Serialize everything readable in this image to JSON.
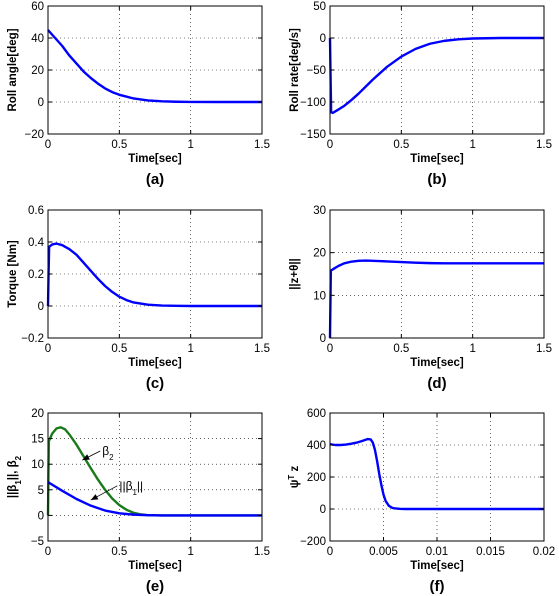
{
  "chart_data": [
    {
      "id": "a",
      "type": "line",
      "caption": "(a)",
      "xlabel": "Time[sec]",
      "ylabel": "Roll angle[deg]",
      "xlim": [
        0,
        1.5
      ],
      "ylim": [
        -20,
        60
      ],
      "xticks": [
        0,
        0.5,
        1,
        1.5
      ],
      "xtick_labels": [
        "0",
        "0.5",
        "1",
        "1.5"
      ],
      "yticks": [
        -20,
        0,
        20,
        40,
        60
      ],
      "ytick_labels": [
        "−20",
        "0",
        "20",
        "40",
        "60"
      ],
      "grid": true,
      "series": [
        {
          "color": "#0000ff",
          "x": [
            0,
            0.05,
            0.1,
            0.15,
            0.2,
            0.25,
            0.3,
            0.35,
            0.4,
            0.45,
            0.5,
            0.6,
            0.7,
            0.8,
            0.9,
            1.0,
            1.2,
            1.5
          ],
          "y": [
            45,
            40,
            35,
            29,
            24,
            19,
            15,
            11.5,
            8.5,
            6.2,
            4.5,
            2.2,
            1,
            0.4,
            0.15,
            0.05,
            0,
            0
          ]
        }
      ]
    },
    {
      "id": "b",
      "type": "line",
      "caption": "(b)",
      "xlabel": "Time[sec]",
      "ylabel": "Roll rate[deg/s]",
      "xlim": [
        0,
        1.5
      ],
      "ylim": [
        -150,
        50
      ],
      "xticks": [
        0,
        0.5,
        1,
        1.5
      ],
      "xtick_labels": [
        "0",
        "0.5",
        "1",
        "1.5"
      ],
      "yticks": [
        -150,
        -100,
        -50,
        0,
        50
      ],
      "ytick_labels": [
        "−150",
        "−100",
        "−50",
        "0",
        "50"
      ],
      "grid": true,
      "series": [
        {
          "color": "#0000ff",
          "x": [
            0,
            0.004,
            0.008,
            0.02,
            0.05,
            0.1,
            0.15,
            0.2,
            0.25,
            0.3,
            0.35,
            0.4,
            0.45,
            0.5,
            0.6,
            0.7,
            0.8,
            0.9,
            1.0,
            1.2,
            1.5
          ],
          "y": [
            0,
            -60,
            -116,
            -117,
            -113,
            -106,
            -97,
            -87,
            -76,
            -65,
            -55,
            -45,
            -37,
            -29,
            -17,
            -9,
            -4.5,
            -2,
            -0.8,
            0,
            0
          ]
        }
      ]
    },
    {
      "id": "c",
      "type": "line",
      "caption": "(c)",
      "xlabel": "Time[sec]",
      "ylabel": "Torque [Nm]",
      "xlim": [
        0,
        1.5
      ],
      "ylim": [
        -0.2,
        0.6
      ],
      "xticks": [
        0,
        0.5,
        1,
        1.5
      ],
      "xtick_labels": [
        "0",
        "0.5",
        "1",
        "1.5"
      ],
      "yticks": [
        -0.2,
        0,
        0.2,
        0.4,
        0.6
      ],
      "ytick_labels": [
        "−0.2",
        "0",
        "0.2",
        "0.4",
        "0.6"
      ],
      "grid": true,
      "series": [
        {
          "color": "#0000ff",
          "x": [
            0,
            0.004,
            0.008,
            0.03,
            0.06,
            0.1,
            0.15,
            0.2,
            0.25,
            0.3,
            0.35,
            0.4,
            0.45,
            0.5,
            0.55,
            0.6,
            0.7,
            0.8,
            0.9,
            1.0,
            1.2,
            1.5
          ],
          "y": [
            0,
            0.2,
            0.37,
            0.385,
            0.39,
            0.38,
            0.355,
            0.32,
            0.27,
            0.22,
            0.17,
            0.125,
            0.088,
            0.058,
            0.037,
            0.022,
            0.008,
            0.003,
            0.001,
            0,
            0,
            0
          ]
        }
      ]
    },
    {
      "id": "d",
      "type": "line",
      "caption": "(d)",
      "xlabel": "Time[sec]",
      "ylabel": "||z+θ||",
      "xlim": [
        0,
        1.5
      ],
      "ylim": [
        0,
        30
      ],
      "xticks": [
        0,
        0.5,
        1,
        1.5
      ],
      "xtick_labels": [
        "0",
        "0.5",
        "1",
        "1.5"
      ],
      "yticks": [
        0,
        10,
        20,
        30
      ],
      "ytick_labels": [
        "0",
        "10",
        "20",
        "30"
      ],
      "grid": true,
      "series": [
        {
          "color": "#0000ff",
          "x": [
            0,
            0.003,
            0.006,
            0.03,
            0.06,
            0.1,
            0.15,
            0.2,
            0.25,
            0.3,
            0.4,
            0.5,
            0.6,
            0.7,
            0.8,
            1.0,
            1.2,
            1.5
          ],
          "y": [
            0,
            8,
            15.8,
            16.3,
            16.9,
            17.5,
            17.9,
            18.1,
            18.15,
            18.1,
            17.95,
            17.8,
            17.65,
            17.55,
            17.5,
            17.5,
            17.5,
            17.5
          ]
        }
      ]
    },
    {
      "id": "e",
      "type": "line",
      "caption": "(e)",
      "xlabel": "Time[sec]",
      "ylabel": "||β1||, β2",
      "xlim": [
        0,
        1.5
      ],
      "ylim": [
        -5,
        20
      ],
      "xticks": [
        0,
        0.5,
        1,
        1.5
      ],
      "xtick_labels": [
        "0",
        "0.5",
        "1",
        "1.5"
      ],
      "yticks": [
        -5,
        0,
        5,
        10,
        15,
        20
      ],
      "ytick_labels": [
        "−5",
        "0",
        "5",
        "10",
        "15",
        "20"
      ],
      "grid": true,
      "annotations": [
        {
          "text": "β2",
          "tx": 0.38,
          "ty": 11.8,
          "ax": 0.24,
          "ay": 10.8
        },
        {
          "text": "||β1||",
          "tx": 0.5,
          "ty": 5.0,
          "ax": 0.3,
          "ay": 3.0
        }
      ],
      "series": [
        {
          "color": "#1a7a1a",
          "x": [
            0,
            0.003,
            0.006,
            0.03,
            0.06,
            0.09,
            0.12,
            0.15,
            0.2,
            0.25,
            0.3,
            0.35,
            0.4,
            0.45,
            0.5,
            0.55,
            0.6,
            0.65,
            0.7,
            0.8,
            1.0,
            1.5
          ],
          "y": [
            0,
            8,
            14.5,
            16,
            17,
            17.2,
            16.8,
            15.8,
            13.8,
            11.5,
            9.2,
            7,
            5,
            3.3,
            2,
            1.1,
            0.5,
            0.2,
            0.05,
            0,
            0,
            0
          ]
        },
        {
          "color": "#0000ff",
          "x": [
            0,
            0.1,
            0.2,
            0.3,
            0.4,
            0.5,
            0.6,
            0.7,
            0.8,
            1.0,
            1.5
          ],
          "y": [
            6.5,
            4.8,
            3.2,
            1.9,
            0.95,
            0.4,
            0.15,
            0.05,
            0,
            0,
            0
          ]
        }
      ]
    },
    {
      "id": "f",
      "type": "line",
      "caption": "(f)",
      "xlabel": "Time[sec]",
      "ylabel": "ψT z",
      "xlim": [
        0,
        0.02
      ],
      "ylim": [
        -200,
        600
      ],
      "xticks": [
        0,
        0.005,
        0.01,
        0.015,
        0.02
      ],
      "xtick_labels": [
        "0",
        "0.005",
        "0.01",
        "0.015",
        "0.02"
      ],
      "yticks": [
        -200,
        0,
        200,
        400,
        600
      ],
      "ytick_labels": [
        "−200",
        "0",
        "200",
        "400",
        "600"
      ],
      "grid": true,
      "series": [
        {
          "color": "#0000ff",
          "x": [
            0,
            0.0005,
            0.001,
            0.0015,
            0.002,
            0.0025,
            0.003,
            0.0035,
            0.0038,
            0.004,
            0.0042,
            0.0044,
            0.0046,
            0.0048,
            0.005,
            0.0052,
            0.0055,
            0.0058,
            0.006,
            0.0065,
            0.007,
            0.008,
            0.01,
            0.015,
            0.02
          ],
          "y": [
            405,
            400,
            400,
            403,
            408,
            415,
            425,
            437,
            435,
            415,
            370,
            300,
            220,
            150,
            90,
            50,
            20,
            8,
            4,
            1,
            0,
            0,
            0,
            0,
            0
          ]
        }
      ]
    }
  ]
}
